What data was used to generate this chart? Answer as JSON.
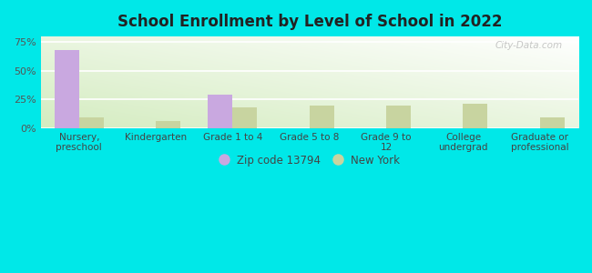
{
  "title": "School Enrollment by Level of School in 2022",
  "categories": [
    "Nursery,\npreschool",
    "Kindergarten",
    "Grade 1 to 4",
    "Grade 5 to 8",
    "Grade 9 to\n12",
    "College\nundergrad",
    "Graduate or\nprofessional"
  ],
  "zip_values": [
    68.0,
    0.0,
    29.0,
    0.0,
    0.0,
    0.0,
    0.0
  ],
  "ny_values": [
    9.0,
    6.0,
    18.0,
    19.5,
    19.5,
    21.5,
    9.0
  ],
  "zip_color": "#c9a8e0",
  "ny_color": "#c8d4a0",
  "background_outer": "#00e8e8",
  "background_inner_topleft": "#ffffff",
  "background_inner_bottomright": "#d4ecc0",
  "yticks": [
    0,
    25,
    50,
    75
  ],
  "ylim": [
    0,
    80
  ],
  "bar_width": 0.32,
  "legend_zip": "Zip code 13794",
  "legend_ny": "New York",
  "watermark": "City-Data.com"
}
